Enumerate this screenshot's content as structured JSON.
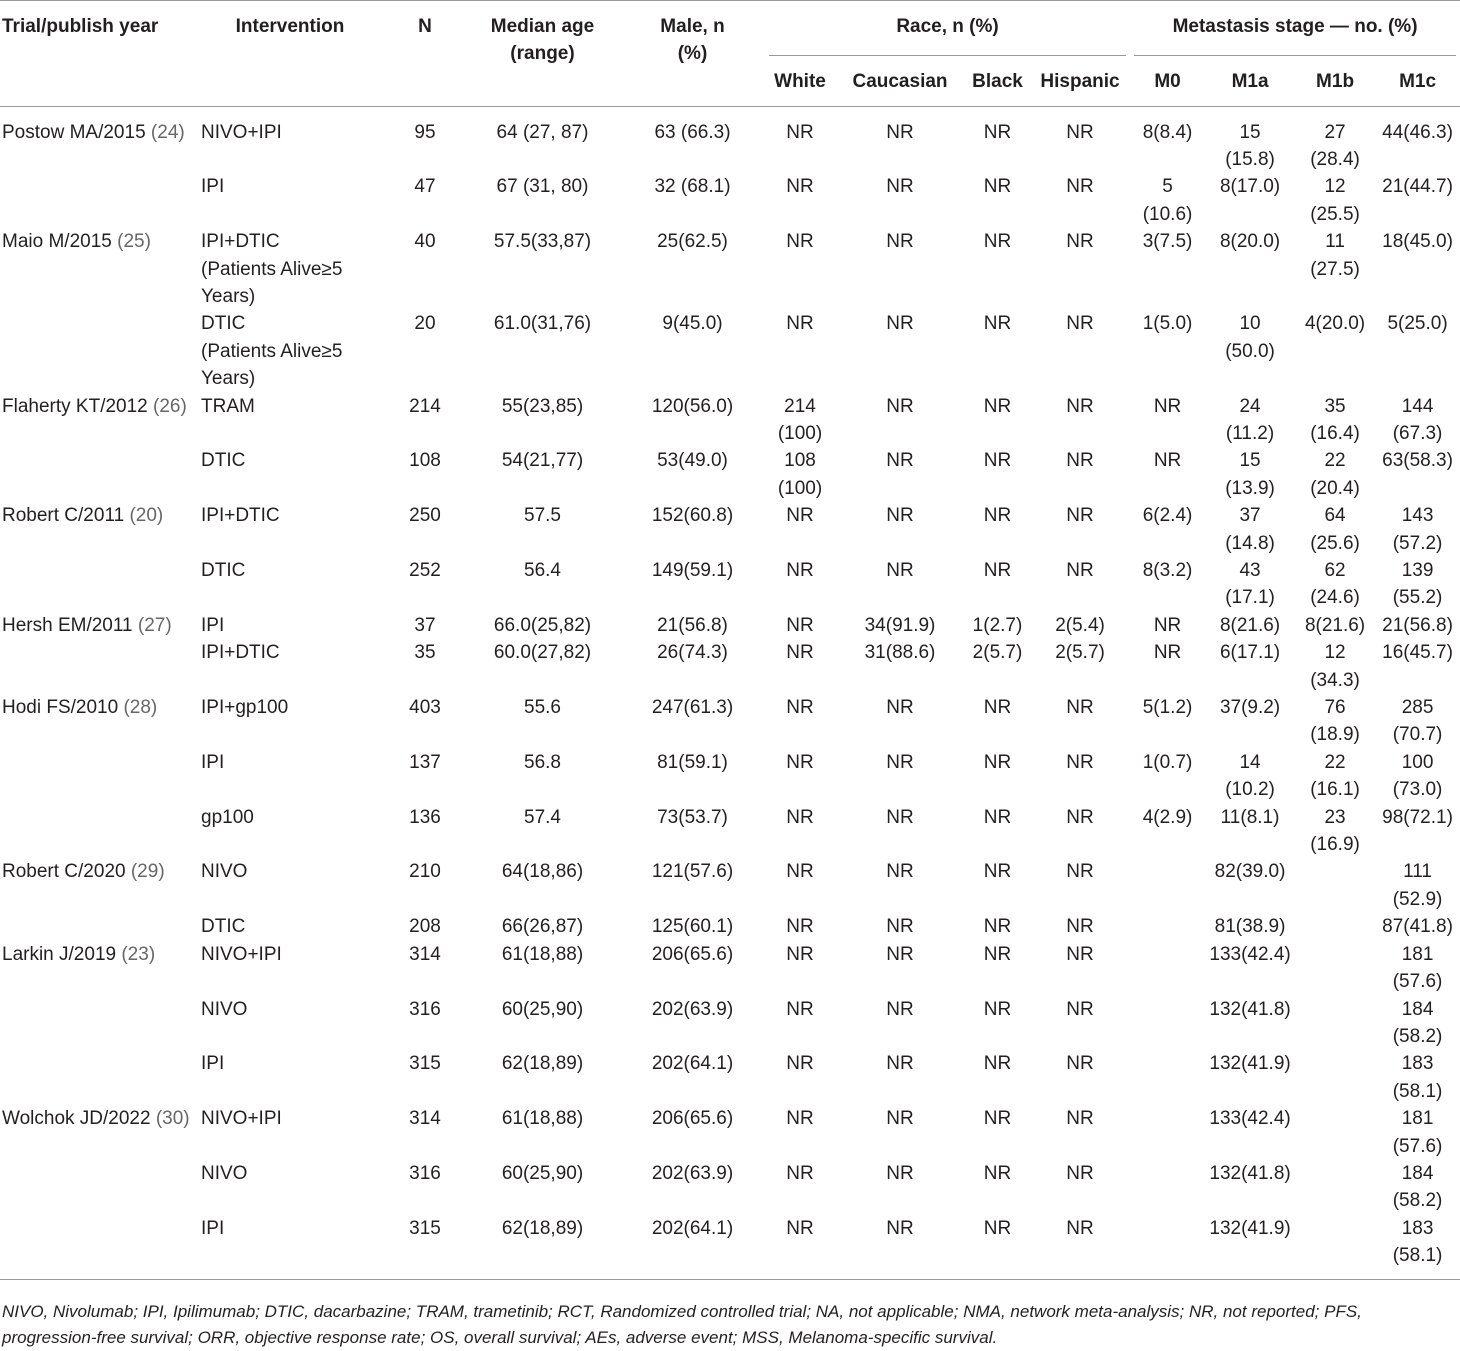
{
  "table": {
    "header": {
      "trial": "Trial/publish year",
      "intervention": "Intervention",
      "n": "N",
      "age": "Median age\n(range)",
      "male": "Male, n\n(%)",
      "race": "Race, n (%)",
      "race_cols": [
        "White",
        "Caucasian",
        "Black",
        "Hispanic"
      ],
      "meta": "Metastasis stage — no. (%)",
      "meta_cols": [
        "M0",
        "M1a",
        "M1b",
        "M1c"
      ]
    },
    "trials": [
      {
        "name": "Postow MA/2015",
        "ref": "(24)",
        "arms": [
          [
            "NIVO+IPI",
            "95",
            "64 (27, 87)",
            "63 (66.3)",
            "NR",
            "NR",
            "NR",
            "NR",
            "8(8.4)",
            "15\n(15.8)",
            "27\n(28.4)",
            "44(46.3)"
          ],
          [
            "IPI",
            "47",
            "67 (31, 80)",
            "32 (68.1)",
            "NR",
            "NR",
            "NR",
            "NR",
            "5\n(10.6)",
            "8(17.0)",
            "12\n(25.5)",
            "21(44.7)"
          ]
        ]
      },
      {
        "name": "Maio M/2015",
        "ref": "(25)",
        "arms": [
          [
            "IPI+DTIC\n(Patients Alive≥5\nYears)",
            "40",
            "57.5(33,87)",
            "25(62.5)",
            "NR",
            "NR",
            "NR",
            "NR",
            "3(7.5)",
            "8(20.0)",
            "11\n(27.5)",
            "18(45.0)"
          ],
          [
            "DTIC\n(Patients Alive≥5\nYears)",
            "20",
            "61.0(31,76)",
            "9(45.0)",
            "NR",
            "NR",
            "NR",
            "NR",
            "1(5.0)",
            "10\n(50.0)",
            "4(20.0)",
            "5(25.0)"
          ]
        ]
      },
      {
        "name": "Flaherty KT/2012",
        "ref": "(26)",
        "arms": [
          [
            "TRAM",
            "214",
            "55(23,85)",
            "120(56.0)",
            "214\n(100)",
            "NR",
            "NR",
            "NR",
            "NR",
            "24\n(11.2)",
            "35\n(16.4)",
            "144\n(67.3)"
          ],
          [
            "DTIC",
            "108",
            "54(21,77)",
            "53(49.0)",
            "108\n(100)",
            "NR",
            "NR",
            "NR",
            "NR",
            "15\n(13.9)",
            "22\n(20.4)",
            "63(58.3)"
          ]
        ]
      },
      {
        "name": "Robert C/2011",
        "ref": "(20)",
        "arms": [
          [
            "IPI+DTIC",
            "250",
            "57.5",
            "152(60.8)",
            "NR",
            "NR",
            "NR",
            "NR",
            "6(2.4)",
            "37\n(14.8)",
            "64\n(25.6)",
            "143\n(57.2)"
          ],
          [
            "DTIC",
            "252",
            "56.4",
            "149(59.1)",
            "NR",
            "NR",
            "NR",
            "NR",
            "8(3.2)",
            "43\n(17.1)",
            "62\n(24.6)",
            "139\n(55.2)"
          ]
        ]
      },
      {
        "name": "Hersh EM/2011",
        "ref": "(27)",
        "arms": [
          [
            "IPI",
            "37",
            "66.0(25,82)",
            "21(56.8)",
            "NR",
            "34(91.9)",
            "1(2.7)",
            "2(5.4)",
            "NR",
            "8(21.6)",
            "8(21.6)",
            "21(56.8)"
          ],
          [
            "IPI+DTIC",
            "35",
            "60.0(27,82)",
            "26(74.3)",
            "NR",
            "31(88.6)",
            "2(5.7)",
            "2(5.7)",
            "NR",
            "6(17.1)",
            "12\n(34.3)",
            "16(45.7)"
          ]
        ]
      },
      {
        "name": "Hodi FS/2010",
        "ref": "(28)",
        "arms": [
          [
            "IPI+gp100",
            "403",
            "55.6",
            "247(61.3)",
            "NR",
            "NR",
            "NR",
            "NR",
            "5(1.2)",
            "37(9.2)",
            "76\n(18.9)",
            "285\n(70.7)"
          ],
          [
            "IPI",
            "137",
            "56.8",
            "81(59.1)",
            "NR",
            "NR",
            "NR",
            "NR",
            "1(0.7)",
            "14\n(10.2)",
            "22\n(16.1)",
            "100\n(73.0)"
          ],
          [
            "gp100",
            "136",
            "57.4",
            "73(53.7)",
            "NR",
            "NR",
            "NR",
            "NR",
            "4(2.9)",
            "11(8.1)",
            "23\n(16.9)",
            "98(72.1)"
          ]
        ]
      },
      {
        "name": "Robert C/2020",
        "ref": "(29)",
        "arms": [
          [
            "NIVO",
            "210",
            "64(18,86)",
            "121(57.6)",
            "NR",
            "NR",
            "NR",
            "NR",
            null,
            "82(39.0)",
            null,
            "111\n(52.9)"
          ],
          [
            "DTIC",
            "208",
            "66(26,87)",
            "125(60.1)",
            "NR",
            "NR",
            "NR",
            "NR",
            null,
            "81(38.9)",
            null,
            "87(41.8)"
          ]
        ]
      },
      {
        "name": "Larkin J/2019",
        "ref": "(23)",
        "arms": [
          [
            "NIVO+IPI",
            "314",
            "61(18,88)",
            "206(65.6)",
            "NR",
            "NR",
            "NR",
            "NR",
            null,
            "133(42.4)",
            null,
            "181\n(57.6)"
          ],
          [
            "NIVO",
            "316",
            "60(25,90)",
            "202(63.9)",
            "NR",
            "NR",
            "NR",
            "NR",
            null,
            "132(41.8)",
            null,
            "184\n(58.2)"
          ],
          [
            "IPI",
            "315",
            "62(18,89)",
            "202(64.1)",
            "NR",
            "NR",
            "NR",
            "NR",
            null,
            "132(41.9)",
            null,
            "183\n(58.1)"
          ]
        ]
      },
      {
        "name": "Wolchok JD/2022",
        "ref": "(30)",
        "arms": [
          [
            "NIVO+IPI",
            "314",
            "61(18,88)",
            "206(65.6)",
            "NR",
            "NR",
            "NR",
            "NR",
            null,
            "133(42.4)",
            null,
            "181\n(57.6)"
          ],
          [
            "NIVO",
            "316",
            "60(25,90)",
            "202(63.9)",
            "NR",
            "NR",
            "NR",
            "NR",
            null,
            "132(41.8)",
            null,
            "184\n(58.2)"
          ],
          [
            "IPI",
            "315",
            "62(18,89)",
            "202(64.1)",
            "NR",
            "NR",
            "NR",
            "NR",
            null,
            "132(41.9)",
            null,
            "183\n(58.1)"
          ]
        ]
      }
    ],
    "footnote": "NIVO, Nivolumab; IPI, Ipilimumab; DTIC, dacarbazine; TRAM, trametinib; RCT, Randomized controlled trial; NA, not applicable; NMA, network meta-analysis; NR, not reported; PFS, progression-free survival; ORR, objective response rate; OS, overall survival; AEs, adverse event; MSS, Melanoma-specific survival."
  }
}
